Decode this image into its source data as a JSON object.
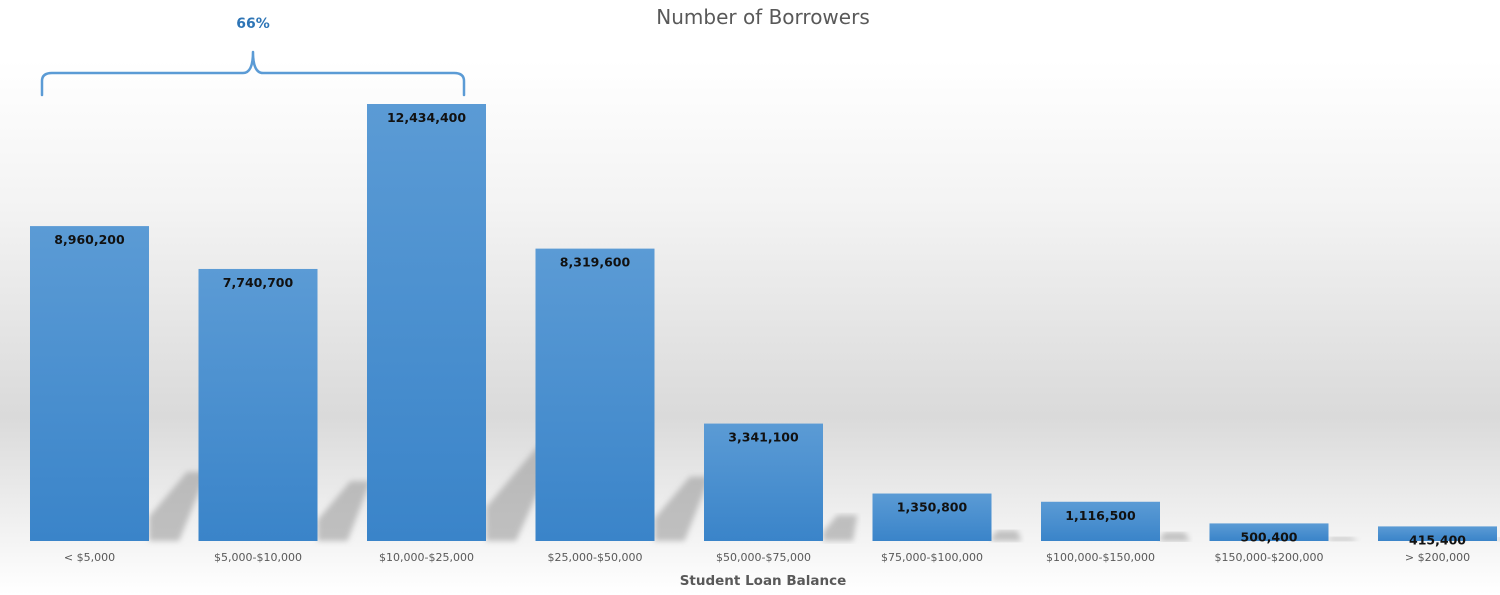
{
  "chart_data": {
    "type": "bar",
    "title": "Number of Borrowers",
    "xlabel": "Student Loan Balance",
    "ylabel": "",
    "categories": [
      "< $5,000",
      "$5,000-$10,000",
      "$10,000-$25,000",
      "$25,000-$50,000",
      "$50,000-$75,000",
      "$75,000-$100,000",
      "$100,000-$150,000",
      "$150,000-$200,000",
      "> $200,000"
    ],
    "values": [
      8960200,
      7740700,
      12434400,
      8319600,
      3341100,
      1350800,
      1116500,
      500400,
      415400
    ],
    "data_labels": [
      "8,960,200",
      "7,740,700",
      "12,434,400",
      "8,319,600",
      "3,341,100",
      "1,350,800",
      "1,116,500",
      "500,400",
      "415,400"
    ],
    "ylim": [
      0,
      12434400
    ],
    "grid": false,
    "legend": "none",
    "annotation": {
      "text": "66%",
      "span": [
        "< $5,000",
        "$10,000-$25,000"
      ]
    },
    "colors": {
      "bar_top": "#5b9bd5",
      "bar_bottom": "#3a84c9",
      "annotation": "#2e75b6",
      "bracket": "#5b9bd5"
    }
  }
}
